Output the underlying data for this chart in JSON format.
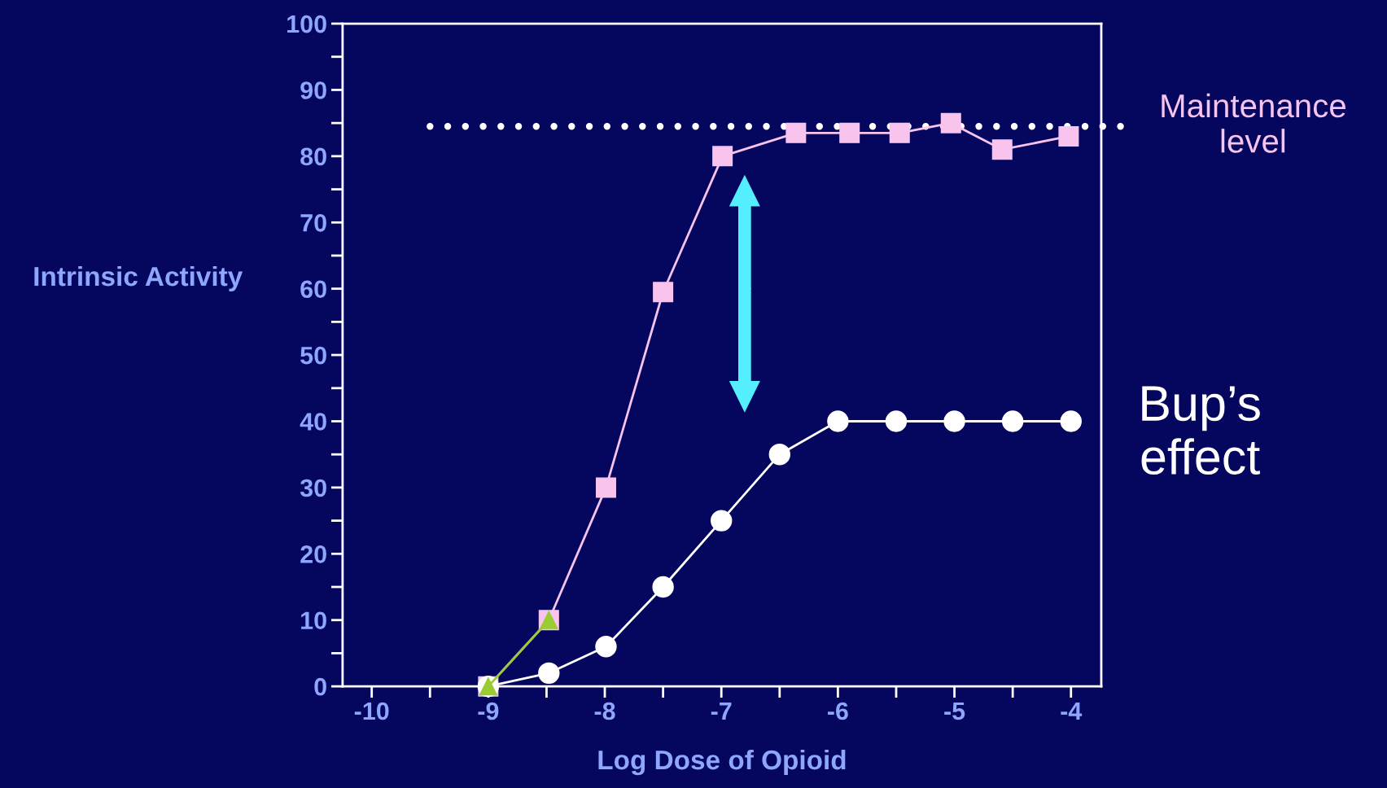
{
  "chart_data": {
    "type": "line",
    "xlabel": "Log Dose of Opioid",
    "ylabel": "Intrinsic Activity",
    "xlim": [
      -10.25,
      -3.74
    ],
    "ylim": [
      0,
      100
    ],
    "xticks": [
      -10,
      {
        "value": -9.5,
        "label": null
      },
      -9,
      {
        "value": -8.5,
        "label": null
      },
      -8,
      {
        "value": -7.5,
        "label": null
      },
      -7,
      {
        "value": -6.5,
        "label": null
      },
      -6,
      {
        "value": -5.5,
        "label": null
      },
      -5,
      {
        "value": -4.5,
        "label": null
      },
      -4
    ],
    "yticks": [
      0,
      {
        "value": 5,
        "label": null
      },
      10,
      {
        "value": 15,
        "label": null
      },
      20,
      {
        "value": 25,
        "label": null
      },
      30,
      {
        "value": 35,
        "label": null
      },
      40,
      {
        "value": 45,
        "label": null
      },
      50,
      {
        "value": 55,
        "label": null
      },
      60,
      {
        "value": 65,
        "label": null
      },
      70,
      {
        "value": 75,
        "label": null
      },
      80,
      {
        "value": 85,
        "label": null
      },
      90,
      {
        "value": 95,
        "label": null
      },
      100
    ],
    "series": [
      {
        "color": "#f8c4ee",
        "marker": "square",
        "x": [
          -9,
          -8.48,
          -7.99,
          -7.5,
          -6.99,
          -6.36,
          -5.9,
          -5.47,
          -5.03,
          -4.59,
          -4.02
        ],
        "values": [
          0,
          10,
          30,
          59.5,
          80,
          83.5,
          83.5,
          83.5,
          85,
          81,
          83
        ]
      },
      {
        "color": "#ffffff",
        "marker": "circle",
        "x": [
          -9,
          -8.48,
          -7.99,
          -7.5,
          -7,
          -6.5,
          -6,
          -5.5,
          -5,
          -4.5,
          -4
        ],
        "values": [
          0,
          2,
          6,
          15,
          25,
          35,
          40,
          40,
          40,
          40,
          40
        ]
      },
      {
        "color": "#99cc33",
        "marker": "triangle",
        "x": [
          -9,
          -8.48
        ],
        "values": [
          0,
          10
        ]
      }
    ],
    "ref_lines": [
      {
        "axis": "y",
        "value": 84.5,
        "label": "Maintenance level",
        "color": "#ffffff",
        "line_style": "dotted"
      }
    ],
    "annotations": [
      "Bup’s effect"
    ],
    "grid": false,
    "legend": false
  }
}
